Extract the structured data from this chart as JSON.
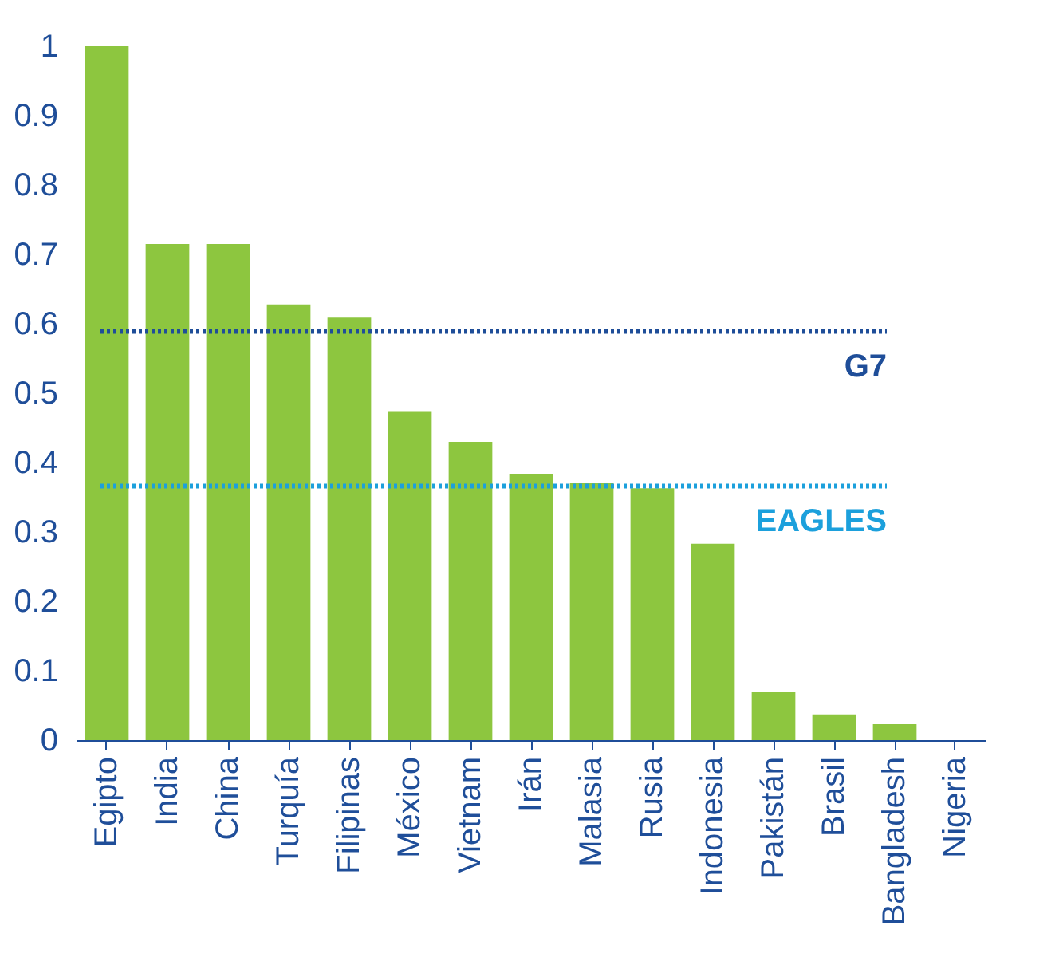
{
  "chart_data": {
    "type": "bar",
    "categories": [
      "Egipto",
      "India",
      "China",
      "Turquía",
      "Filipinas",
      "México",
      "Vietnam",
      "Irán",
      "Malasia",
      "Rusia",
      "Indonesia",
      "Pakistán",
      "Brasil",
      "Bangladesh",
      "Nigeria"
    ],
    "values": [
      1.0,
      0.715,
      0.715,
      0.628,
      0.609,
      0.474,
      0.43,
      0.384,
      0.37,
      0.363,
      0.283,
      0.069,
      0.037,
      0.023,
      0
    ],
    "color": "#8dc63f",
    "ylim": [
      0,
      1
    ],
    "yticks": [
      0,
      0.1,
      0.2,
      0.3,
      0.4,
      0.5,
      0.6,
      0.7,
      0.8,
      0.9,
      1
    ],
    "grid": false,
    "ref_lines": [
      {
        "axis": "y",
        "value": 0.589,
        "label": "G7",
        "color": "#1f4e99",
        "line_style": "dotted"
      },
      {
        "axis": "y",
        "value": 0.366,
        "label": "EAGLES",
        "color": "#1ca0dc",
        "line_style": "dotted"
      }
    ]
  }
}
